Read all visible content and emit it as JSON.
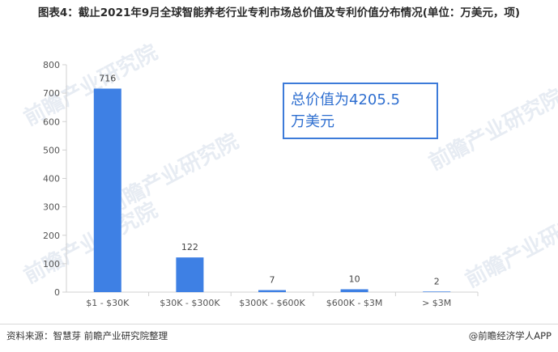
{
  "title": "图表4：截止2021年9月全球智能养老行业专利市场总价值及专利价值分布情况(单位：万美元，项)",
  "callout": "总价值为4205.5\n万美元",
  "footer": {
    "source": "资料来源：智慧芽 前瞻产业研究院整理",
    "brand": "@前瞻经济学人APP"
  },
  "watermark": "前瞻产业研究院",
  "chart_data": {
    "type": "bar",
    "title": "",
    "xlabel": "",
    "ylabel": "",
    "categories": [
      "$1 - $30K",
      "$30K - $300K",
      "$300K - $600K",
      "$600K - $3M",
      "> $3M"
    ],
    "values": [
      716,
      122,
      7,
      10,
      2
    ],
    "ylim": [
      0,
      800
    ],
    "yticks": [
      0,
      100,
      200,
      300,
      400,
      500,
      600,
      700,
      800
    ],
    "grid": false,
    "legend": "none",
    "bar_color": "#3e80e4",
    "axis_color": "#d0d0d0",
    "tick_color": "#555555"
  }
}
